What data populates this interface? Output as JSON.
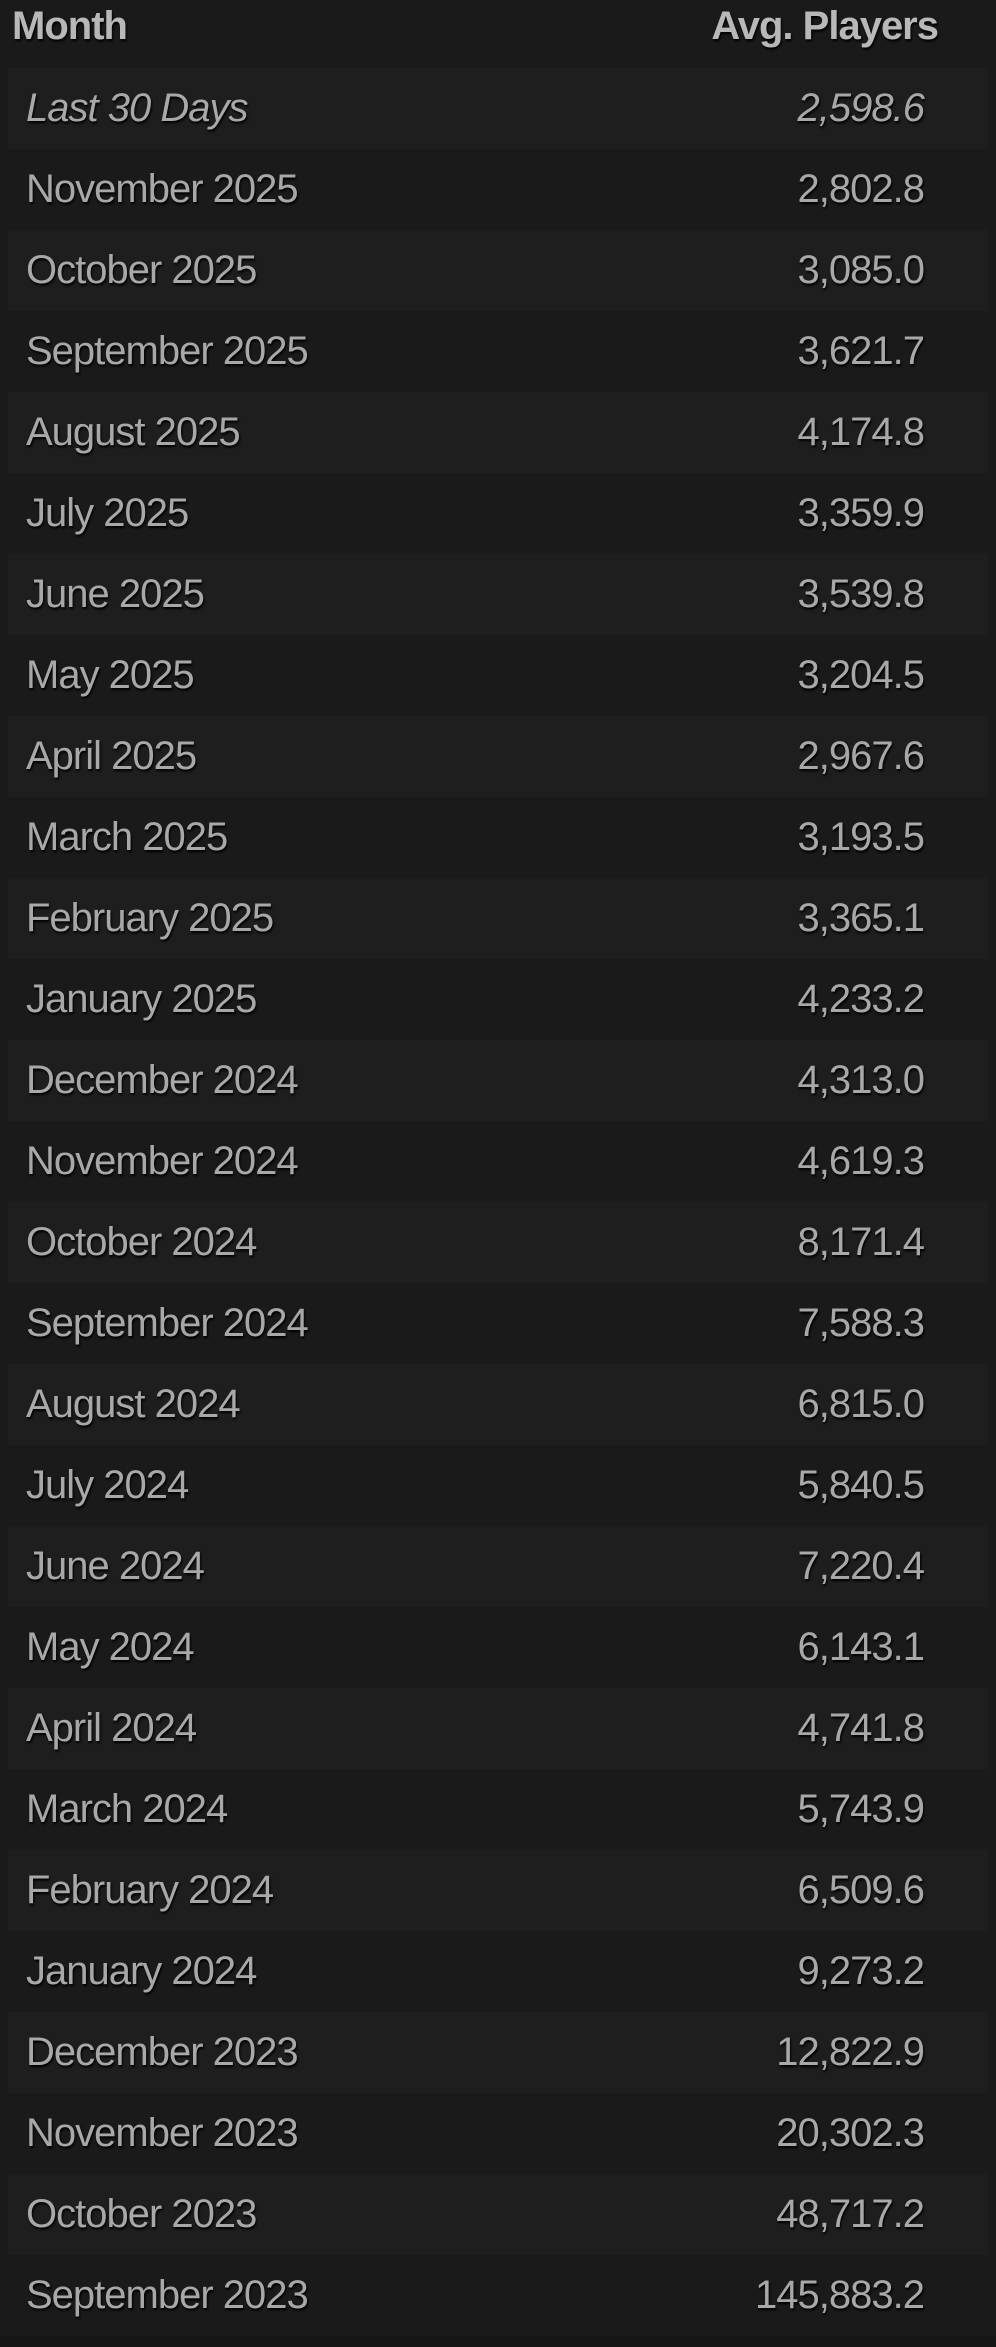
{
  "table": {
    "headers": {
      "month": "Month",
      "avg_players": "Avg. Players"
    },
    "rows": [
      {
        "month": "Last 30 Days",
        "avg": "2,598.6"
      },
      {
        "month": "November 2025",
        "avg": "2,802.8"
      },
      {
        "month": "October 2025",
        "avg": "3,085.0"
      },
      {
        "month": "September 2025",
        "avg": "3,621.7"
      },
      {
        "month": "August 2025",
        "avg": "4,174.8"
      },
      {
        "month": "July 2025",
        "avg": "3,359.9"
      },
      {
        "month": "June 2025",
        "avg": "3,539.8"
      },
      {
        "month": "May 2025",
        "avg": "3,204.5"
      },
      {
        "month": "April 2025",
        "avg": "2,967.6"
      },
      {
        "month": "March 2025",
        "avg": "3,193.5"
      },
      {
        "month": "February 2025",
        "avg": "3,365.1"
      },
      {
        "month": "January 2025",
        "avg": "4,233.2"
      },
      {
        "month": "December 2024",
        "avg": "4,313.0"
      },
      {
        "month": "November 2024",
        "avg": "4,619.3"
      },
      {
        "month": "October 2024",
        "avg": "8,171.4"
      },
      {
        "month": "September 2024",
        "avg": "7,588.3"
      },
      {
        "month": "August 2024",
        "avg": "6,815.0"
      },
      {
        "month": "July 2024",
        "avg": "5,840.5"
      },
      {
        "month": "June 2024",
        "avg": "7,220.4"
      },
      {
        "month": "May 2024",
        "avg": "6,143.1"
      },
      {
        "month": "April 2024",
        "avg": "4,741.8"
      },
      {
        "month": "March 2024",
        "avg": "5,743.9"
      },
      {
        "month": "February 2024",
        "avg": "6,509.6"
      },
      {
        "month": "January 2024",
        "avg": "9,273.2"
      },
      {
        "month": "December 2023",
        "avg": "12,822.9"
      },
      {
        "month": "November 2023",
        "avg": "20,302.3"
      },
      {
        "month": "October 2023",
        "avg": "48,717.2"
      },
      {
        "month": "September 2023",
        "avg": "145,883.2"
      }
    ]
  }
}
